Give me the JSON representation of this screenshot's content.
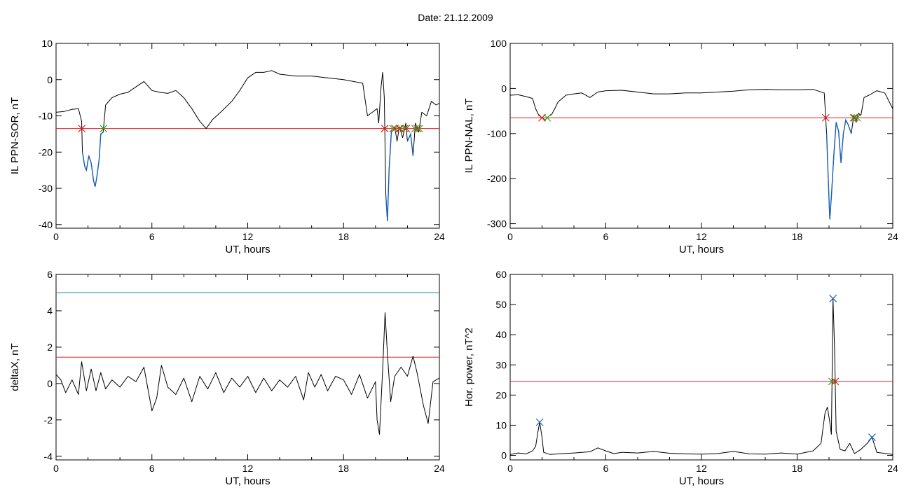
{
  "page_title": "Date:  21.12.2009",
  "colors": {
    "trace": "#000000",
    "highlight": "#1560bd",
    "threshold": "#e02020",
    "cyan_line": "#2088b0",
    "marker_red": "#e02020",
    "marker_green": "#20b020",
    "marker_blue": "#1560bd"
  },
  "chart_data": [
    {
      "id": "il-ppn-sor",
      "type": "line",
      "title": "",
      "xlabel": "UT, hours",
      "ylabel": "IL PPN-SOR, nT",
      "xlim": [
        0,
        24
      ],
      "ylim": [
        -41,
        10
      ],
      "xticks": [
        0,
        6,
        12,
        18,
        24
      ],
      "yticks": [
        -40,
        -30,
        -20,
        -10,
        0,
        10
      ],
      "grid": false,
      "series": [
        {
          "values_xy": [
            [
              0.0,
              -9.0
            ],
            [
              0.5,
              -8.8
            ],
            [
              1.0,
              -8.2
            ],
            [
              1.4,
              -8.0
            ],
            [
              1.6,
              -11.5
            ],
            [
              1.65,
              -20
            ],
            [
              1.8,
              -24
            ],
            [
              1.9,
              -25
            ],
            [
              2.05,
              -21
            ],
            [
              2.2,
              -23
            ],
            [
              2.35,
              -28
            ],
            [
              2.45,
              -29.5
            ],
            [
              2.55,
              -27
            ],
            [
              2.7,
              -22
            ],
            [
              2.8,
              -15
            ],
            [
              2.95,
              -14.5
            ],
            [
              3.1,
              -7
            ],
            [
              3.5,
              -5
            ],
            [
              4.0,
              -4
            ],
            [
              4.5,
              -3.5
            ],
            [
              5.0,
              -2
            ],
            [
              5.5,
              -0.5
            ],
            [
              6.0,
              -3
            ],
            [
              6.5,
              -3.5
            ],
            [
              7.0,
              -3.8
            ],
            [
              7.5,
              -3
            ],
            [
              8.0,
              -5
            ],
            [
              8.5,
              -8
            ],
            [
              9.0,
              -11.5
            ],
            [
              9.4,
              -13.5
            ],
            [
              9.8,
              -11
            ],
            [
              10.3,
              -9
            ],
            [
              11.0,
              -6
            ],
            [
              11.5,
              -3
            ],
            [
              12.0,
              0.5
            ],
            [
              12.5,
              2
            ],
            [
              13.0,
              2
            ],
            [
              13.5,
              2.5
            ],
            [
              14.0,
              1.5
            ],
            [
              15.0,
              1
            ],
            [
              16.0,
              1
            ],
            [
              17.0,
              0.5
            ],
            [
              18.0,
              0
            ],
            [
              19.2,
              -1
            ],
            [
              19.5,
              -10
            ],
            [
              19.8,
              -9
            ],
            [
              20.1,
              -8
            ],
            [
              20.2,
              -12
            ],
            [
              20.35,
              -2
            ],
            [
              20.45,
              2
            ],
            [
              20.55,
              -5
            ],
            [
              20.65,
              -32
            ],
            [
              20.75,
              -39
            ],
            [
              20.85,
              -25
            ],
            [
              21.0,
              -14
            ],
            [
              21.2,
              -13
            ],
            [
              21.35,
              -17
            ],
            [
              21.5,
              -13
            ],
            [
              21.7,
              -16
            ],
            [
              21.9,
              -12
            ],
            [
              22.0,
              -17
            ],
            [
              22.2,
              -15
            ],
            [
              22.35,
              -21
            ],
            [
              22.5,
              -12
            ],
            [
              22.7,
              -14.5
            ],
            [
              22.9,
              -9
            ],
            [
              23.2,
              -10
            ],
            [
              23.5,
              -6
            ],
            [
              23.8,
              -7
            ],
            [
              24.0,
              -6.5
            ]
          ]
        }
      ],
      "threshold": -13.5
    },
    {
      "id": "il-ppn-nal",
      "type": "line",
      "title": "",
      "xlabel": "UT, hours",
      "ylabel": "IL PPN-NAL, nT",
      "xlim": [
        0,
        24
      ],
      "ylim": [
        -310,
        100
      ],
      "xticks": [
        0,
        6,
        12,
        18,
        24
      ],
      "yticks": [
        -300,
        -200,
        -100,
        0,
        100
      ],
      "grid": false,
      "series": [
        {
          "values_xy": [
            [
              0.0,
              -15
            ],
            [
              0.5,
              -14
            ],
            [
              1.0,
              -18
            ],
            [
              1.4,
              -22
            ],
            [
              1.6,
              -45
            ],
            [
              1.8,
              -60
            ],
            [
              2.0,
              -65
            ],
            [
              2.2,
              -70
            ],
            [
              2.4,
              -62
            ],
            [
              2.6,
              -58
            ],
            [
              2.8,
              -45
            ],
            [
              3.0,
              -30
            ],
            [
              3.5,
              -15
            ],
            [
              4.0,
              -12
            ],
            [
              4.5,
              -10
            ],
            [
              5.0,
              -20
            ],
            [
              5.5,
              -8
            ],
            [
              6.0,
              -5
            ],
            [
              7.0,
              -4
            ],
            [
              8.0,
              -8
            ],
            [
              9.0,
              -12
            ],
            [
              10.0,
              -12
            ],
            [
              11.0,
              -10
            ],
            [
              12.0,
              -10
            ],
            [
              13.0,
              -8
            ],
            [
              14.0,
              -6
            ],
            [
              15.0,
              -3
            ],
            [
              16.0,
              -2
            ],
            [
              17.0,
              -3
            ],
            [
              18.0,
              -3
            ],
            [
              19.0,
              -2
            ],
            [
              19.7,
              -10
            ],
            [
              19.85,
              -100
            ],
            [
              19.95,
              -200
            ],
            [
              20.05,
              -290
            ],
            [
              20.15,
              -240
            ],
            [
              20.3,
              -150
            ],
            [
              20.45,
              -75
            ],
            [
              20.6,
              -95
            ],
            [
              20.75,
              -165
            ],
            [
              20.9,
              -100
            ],
            [
              21.05,
              -70
            ],
            [
              21.2,
              -80
            ],
            [
              21.4,
              -100
            ],
            [
              21.55,
              -60
            ],
            [
              21.7,
              -75
            ],
            [
              21.85,
              -55
            ],
            [
              22.0,
              -60
            ],
            [
              22.2,
              -20
            ],
            [
              22.5,
              -15
            ],
            [
              23.0,
              -5
            ],
            [
              23.5,
              -10
            ],
            [
              24.0,
              -45
            ]
          ]
        }
      ],
      "threshold": -65
    },
    {
      "id": "delta-x",
      "type": "line",
      "title": "",
      "xlabel": "UT, hours",
      "ylabel": "deltaX, nT",
      "xlim": [
        0,
        24
      ],
      "ylim": [
        -4.2,
        6
      ],
      "xticks": [
        0,
        6,
        12,
        18,
        24
      ],
      "yticks": [
        -4,
        -2,
        0,
        2,
        4,
        6
      ],
      "grid": false,
      "series": [
        {
          "values_xy": [
            [
              0.0,
              0.5
            ],
            [
              0.3,
              0.2
            ],
            [
              0.6,
              -0.5
            ],
            [
              1.0,
              0.2
            ],
            [
              1.4,
              -0.6
            ],
            [
              1.6,
              1.2
            ],
            [
              1.9,
              -0.4
            ],
            [
              2.2,
              0.8
            ],
            [
              2.5,
              -0.4
            ],
            [
              2.8,
              0.6
            ],
            [
              3.1,
              -0.3
            ],
            [
              3.5,
              0.2
            ],
            [
              4.0,
              -0.2
            ],
            [
              4.5,
              0.4
            ],
            [
              5.0,
              0.1
            ],
            [
              5.5,
              0.9
            ],
            [
              6.0,
              -1.5
            ],
            [
              6.3,
              -0.8
            ],
            [
              6.6,
              1.0
            ],
            [
              7.0,
              -0.2
            ],
            [
              7.5,
              -0.6
            ],
            [
              8.0,
              0.3
            ],
            [
              8.5,
              -1.0
            ],
            [
              9.0,
              0.4
            ],
            [
              9.5,
              -0.3
            ],
            [
              10.0,
              0.6
            ],
            [
              10.5,
              -0.5
            ],
            [
              11.0,
              0.3
            ],
            [
              11.5,
              -0.2
            ],
            [
              12.0,
              0.4
            ],
            [
              12.5,
              -0.5
            ],
            [
              13.0,
              0.3
            ],
            [
              13.5,
              -0.4
            ],
            [
              14.0,
              0.2
            ],
            [
              14.5,
              -0.2
            ],
            [
              15.0,
              0.4
            ],
            [
              15.5,
              -0.9
            ],
            [
              15.8,
              0.6
            ],
            [
              16.2,
              -0.2
            ],
            [
              16.6,
              0.5
            ],
            [
              17.0,
              -0.4
            ],
            [
              17.5,
              0.4
            ],
            [
              18.0,
              0.2
            ],
            [
              18.5,
              -0.6
            ],
            [
              19.0,
              0.5
            ],
            [
              19.5,
              -0.8
            ],
            [
              20.0,
              0.1
            ],
            [
              20.1,
              -2.0
            ],
            [
              20.25,
              -2.8
            ],
            [
              20.45,
              0.8
            ],
            [
              20.6,
              3.9
            ],
            [
              20.75,
              1.6
            ],
            [
              20.95,
              -1.0
            ],
            [
              21.2,
              0.4
            ],
            [
              21.6,
              0.9
            ],
            [
              22.0,
              0.4
            ],
            [
              22.35,
              1.5
            ],
            [
              22.6,
              0.6
            ],
            [
              23.0,
              -1.2
            ],
            [
              23.3,
              -2.2
            ],
            [
              23.6,
              0.1
            ],
            [
              24.0,
              0.3
            ]
          ]
        }
      ],
      "threshold": 1.45,
      "cyan_line": 5.0
    },
    {
      "id": "hor-power",
      "type": "line",
      "title": "",
      "xlabel": "UT, hours",
      "ylabel": "Hor. power, nT^2",
      "xlim": [
        0,
        24
      ],
      "ylim": [
        -1.5,
        60
      ],
      "xticks": [
        0,
        6,
        12,
        18,
        24
      ],
      "yticks": [
        0,
        10,
        20,
        30,
        40,
        50,
        60
      ],
      "grid": false,
      "series": [
        {
          "values_xy": [
            [
              0.0,
              0.3
            ],
            [
              0.5,
              0.8
            ],
            [
              1.0,
              0.5
            ],
            [
              1.4,
              1.5
            ],
            [
              1.6,
              3
            ],
            [
              1.75,
              8
            ],
            [
              1.85,
              11
            ],
            [
              2.0,
              6
            ],
            [
              2.1,
              1
            ],
            [
              2.5,
              0.3
            ],
            [
              3.0,
              0.5
            ],
            [
              4.0,
              0.8
            ],
            [
              5.0,
              1.2
            ],
            [
              5.5,
              2.5
            ],
            [
              6.0,
              1.5
            ],
            [
              6.5,
              0.6
            ],
            [
              7.0,
              1.0
            ],
            [
              8.0,
              0.8
            ],
            [
              9.0,
              1.3
            ],
            [
              10.0,
              0.7
            ],
            [
              11.0,
              0.5
            ],
            [
              12.0,
              0.4
            ],
            [
              13.0,
              0.6
            ],
            [
              14.0,
              1.3
            ],
            [
              15.0,
              0.5
            ],
            [
              16.0,
              0.4
            ],
            [
              17.0,
              0.8
            ],
            [
              18.0,
              0.4
            ],
            [
              19.0,
              1.5
            ],
            [
              19.5,
              4
            ],
            [
              19.75,
              14
            ],
            [
              19.9,
              16
            ],
            [
              20.05,
              11
            ],
            [
              20.15,
              7
            ],
            [
              20.25,
              52
            ],
            [
              20.35,
              35
            ],
            [
              20.45,
              8
            ],
            [
              20.7,
              2
            ],
            [
              21.0,
              1.5
            ],
            [
              21.3,
              4
            ],
            [
              21.6,
              0.6
            ],
            [
              22.0,
              2
            ],
            [
              22.4,
              4
            ],
            [
              22.7,
              6
            ],
            [
              23.0,
              1.0
            ],
            [
              24.0,
              0.3
            ]
          ]
        }
      ],
      "threshold": 24.5
    }
  ]
}
